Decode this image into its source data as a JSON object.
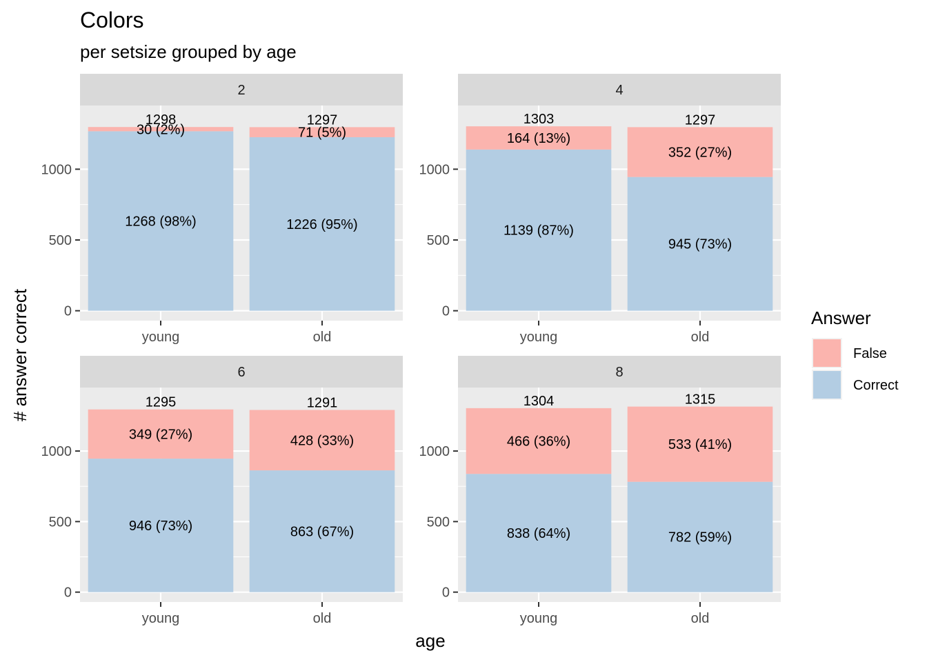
{
  "chart_data": {
    "type": "bar",
    "stacked": true,
    "title": "Colors",
    "subtitle": "per setsize grouped by age",
    "xlabel": "age",
    "ylabel": "# answer correct",
    "categories": [
      "young",
      "old"
    ],
    "y_ticks": [
      0,
      500,
      1000
    ],
    "ylim": [
      -70,
      1450
    ],
    "grid": true,
    "legend": {
      "title": "Answer",
      "position": "right",
      "entries": [
        {
          "label": "False",
          "color": "#FBB4AE"
        },
        {
          "label": "Correct",
          "color": "#B3CDE3"
        }
      ]
    },
    "colors": {
      "False": "#FBB4AE",
      "Correct": "#B3CDE3"
    },
    "facets": [
      {
        "label": "2",
        "bars": [
          {
            "category": "young",
            "correct": 1268,
            "correct_label": "1268 (98%)",
            "false": 30,
            "false_label": "30 (2%)",
            "total": 1298,
            "total_label": "1298"
          },
          {
            "category": "old",
            "correct": 1226,
            "correct_label": "1226 (95%)",
            "false": 71,
            "false_label": "71 (5%)",
            "total": 1297,
            "total_label": "1297"
          }
        ]
      },
      {
        "label": "4",
        "bars": [
          {
            "category": "young",
            "correct": 1139,
            "correct_label": "1139 (87%)",
            "false": 164,
            "false_label": "164 (13%)",
            "total": 1303,
            "total_label": "1303"
          },
          {
            "category": "old",
            "correct": 945,
            "correct_label": "945 (73%)",
            "false": 352,
            "false_label": "352 (27%)",
            "total": 1297,
            "total_label": "1297"
          }
        ]
      },
      {
        "label": "6",
        "bars": [
          {
            "category": "young",
            "correct": 946,
            "correct_label": "946 (73%)",
            "false": 349,
            "false_label": "349 (27%)",
            "total": 1295,
            "total_label": "1295"
          },
          {
            "category": "old",
            "correct": 863,
            "correct_label": "863 (67%)",
            "false": 428,
            "false_label": "428 (33%)",
            "total": 1291,
            "total_label": "1291"
          }
        ]
      },
      {
        "label": "8",
        "bars": [
          {
            "category": "young",
            "correct": 838,
            "correct_label": "838 (64%)",
            "false": 466,
            "false_label": "466 (36%)",
            "total": 1304,
            "total_label": "1304"
          },
          {
            "category": "old",
            "correct": 782,
            "correct_label": "782 (59%)",
            "false": 533,
            "false_label": "533 (41%)",
            "total": 1315,
            "total_label": "1315"
          }
        ]
      }
    ]
  }
}
